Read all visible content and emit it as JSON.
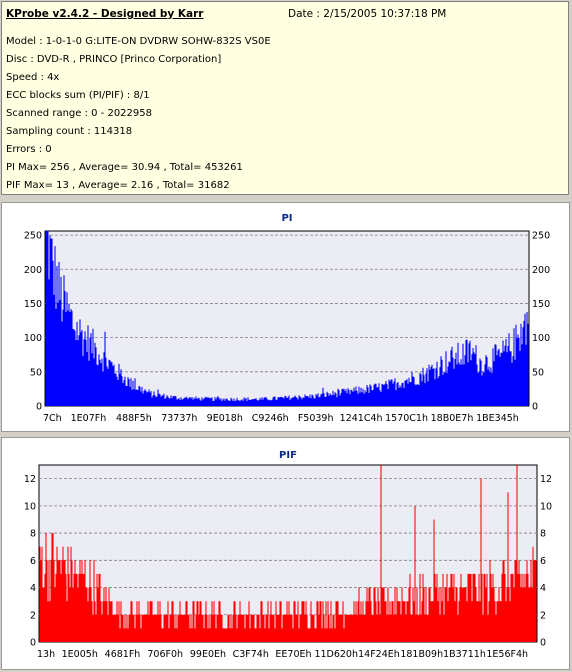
{
  "header": {
    "title": "KProbe v2.4.2 - Designed by Karr",
    "date": "Date : 2/15/2005 10:37:18 PM",
    "lines": [
      "Model : 1-0-1-0 G:LITE-ON DVDRW SOHW-832S  VS0E",
      "Disc : DVD-R , PRINCO [Princo Corporation]",
      "Speed : 4x",
      "ECC blocks sum (PI/PIF) : 8/1",
      "Scanned range : 0 - 2022958",
      "Sampling count : 114318",
      "Errors : 0",
      "PI Max= 256 , Average= 30.94 , Total= 453261",
      "PIF Max= 13 , Average= 2.16 , Total= 31682"
    ]
  },
  "chart_data": [
    {
      "type": "bar",
      "title": "PI",
      "color": "#0000ff",
      "ylim": [
        0,
        256
      ],
      "yticks": [
        0,
        50,
        100,
        150,
        200,
        250
      ],
      "xtick_labels": [
        "7Ch",
        "1E07Fh",
        "488F5h",
        "73737h",
        "9E018h",
        "C9246h",
        "F5039h",
        "1241C4h",
        "1570C1h",
        "18B0E7h",
        "1BE345h"
      ],
      "grid": true,
      "profile": [
        [
          0,
          256
        ],
        [
          0.01,
          215
        ],
        [
          0.03,
          160
        ],
        [
          0.06,
          115
        ],
        [
          0.1,
          85
        ],
        [
          0.14,
          55
        ],
        [
          0.18,
          30
        ],
        [
          0.22,
          17
        ],
        [
          0.27,
          12
        ],
        [
          0.35,
          10
        ],
        [
          0.45,
          10
        ],
        [
          0.55,
          14
        ],
        [
          0.62,
          20
        ],
        [
          0.7,
          28
        ],
        [
          0.78,
          45
        ],
        [
          0.83,
          65
        ],
        [
          0.88,
          80
        ],
        [
          0.9,
          62
        ],
        [
          0.94,
          72
        ],
        [
          0.97,
          90
        ],
        [
          1.0,
          130
        ]
      ]
    },
    {
      "type": "bar",
      "title": "PIF",
      "color": "#ff0000",
      "ylim": [
        0,
        13
      ],
      "yticks": [
        0,
        2,
        4,
        6,
        8,
        10,
        12
      ],
      "xtick_labels": [
        "13h",
        "1E005h",
        "4681Fh",
        "706F0h",
        "99E0Eh",
        "C3F74h",
        "EE70Eh",
        "11D620h",
        "14F24Eh",
        "181B09h",
        "1B3711h",
        "1E56F4h"
      ],
      "grid": true,
      "profile": [
        [
          0,
          6
        ],
        [
          0.05,
          5.5
        ],
        [
          0.1,
          4.5
        ],
        [
          0.13,
          3
        ],
        [
          0.2,
          2
        ],
        [
          0.3,
          2
        ],
        [
          0.45,
          2
        ],
        [
          0.6,
          2.3
        ],
        [
          0.7,
          3
        ],
        [
          0.8,
          3.6
        ],
        [
          0.9,
          4
        ],
        [
          1.0,
          5
        ]
      ]
    }
  ]
}
